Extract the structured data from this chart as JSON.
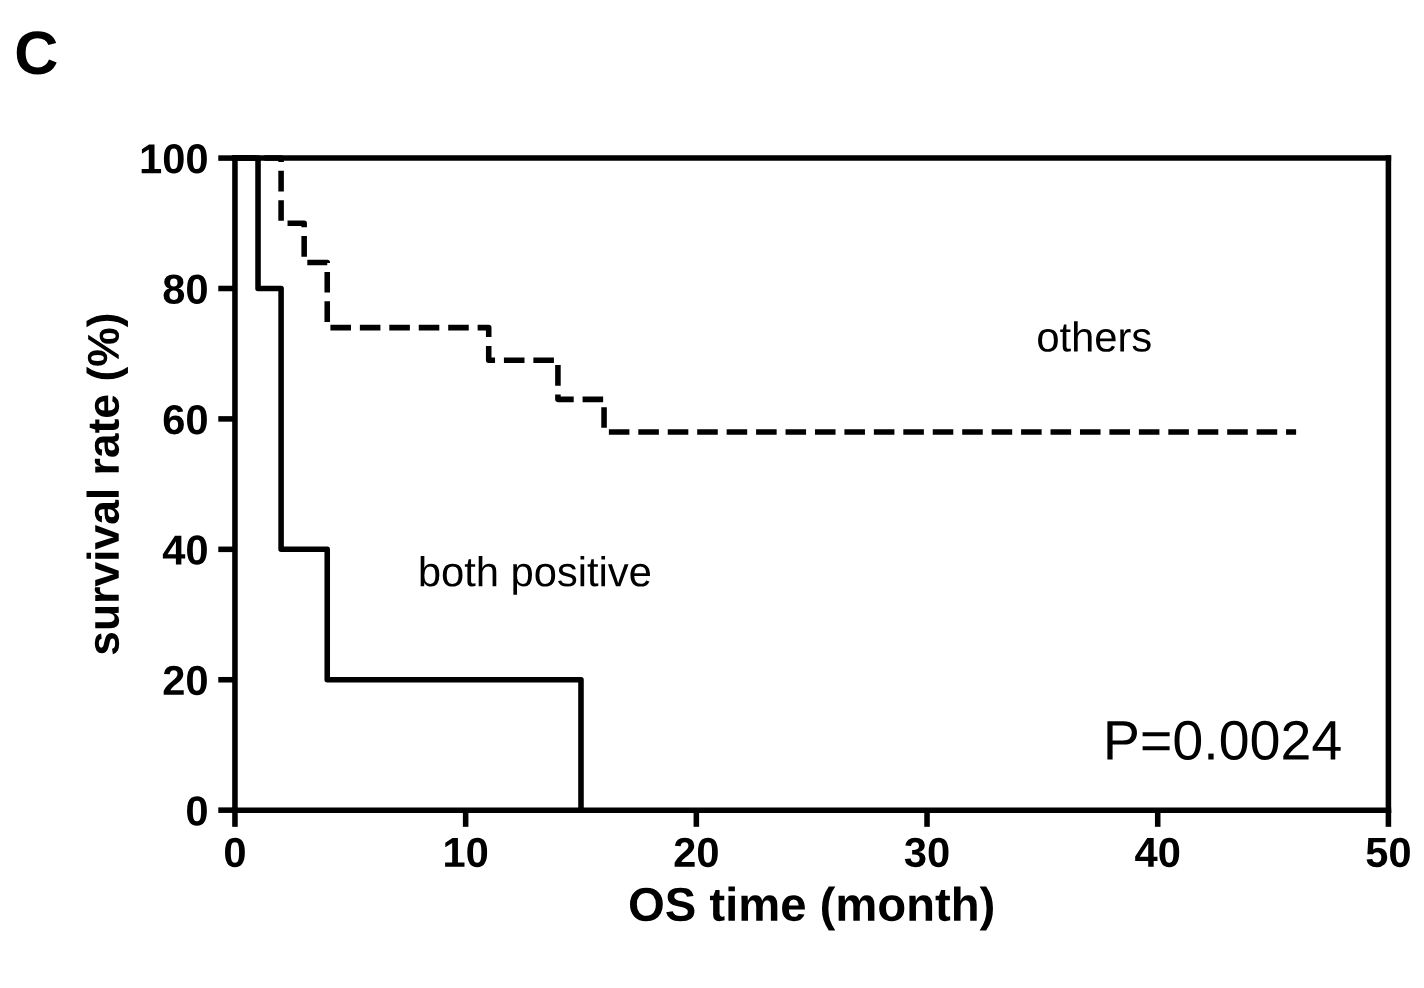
{
  "chart_data": {
    "type": "step",
    "title": "C",
    "xlabel": "OS time (month)",
    "ylabel": "survival rate (%)",
    "series": [
      {
        "name": "others",
        "color": "#000000",
        "line_style": "dashed",
        "x": [
          0,
          2,
          3,
          4,
          11,
          14,
          16,
          17,
          18,
          21,
          22,
          24,
          32,
          37,
          43,
          44,
          46
        ],
        "values": [
          100,
          90,
          84,
          74,
          69,
          63,
          58,
          58,
          58,
          58,
          58,
          58,
          58,
          58,
          58,
          58,
          58
        ]
      },
      {
        "name": "both positive",
        "color": "#000000",
        "line_style": "solid",
        "x": [
          0,
          1,
          2,
          4,
          15,
          15
        ],
        "values": [
          100,
          80,
          40,
          20,
          0,
          0
        ]
      }
    ],
    "annotations": [
      "P=0.0024"
    ],
    "xlim": [
      0,
      50
    ],
    "xticks": [
      0,
      10,
      20,
      30,
      40,
      50
    ],
    "ylim": [
      0,
      100
    ],
    "yticks": [
      0,
      20,
      40,
      60,
      80,
      100
    ],
    "grid": false,
    "legend": false
  }
}
